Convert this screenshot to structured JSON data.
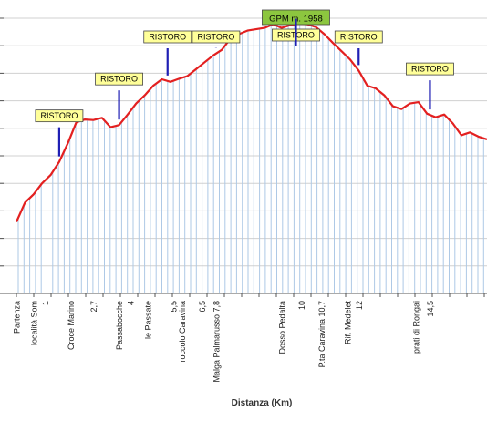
{
  "chart_data": {
    "type": "area",
    "title": "",
    "xlabel": "Distanza (Km)",
    "ylabel": "",
    "x": [
      0,
      0.3,
      0.6,
      0.9,
      1.2,
      1.5,
      1.8,
      2.1,
      2.4,
      2.7,
      3.0,
      3.3,
      3.6,
      3.9,
      4.2,
      4.5,
      4.8,
      5.1,
      5.4,
      5.7,
      6.0,
      6.3,
      6.6,
      6.9,
      7.2,
      7.5,
      7.8,
      8.1,
      8.4,
      8.7,
      9.0,
      9.3,
      9.6,
      9.9,
      10.2,
      10.5,
      10.8,
      11.1,
      11.4,
      11.7,
      12.0,
      12.3,
      12.6,
      12.9,
      13.2,
      13.5,
      13.8,
      14.1,
      14.4,
      14.7,
      15.0,
      15.3,
      15.6,
      15.9,
      16.2,
      16.5
    ],
    "y": [
      1260,
      1330,
      1360,
      1400,
      1430,
      1478,
      1545,
      1622,
      1632,
      1630,
      1638,
      1604,
      1612,
      1650,
      1690,
      1720,
      1755,
      1778,
      1769,
      1780,
      1790,
      1815,
      1840,
      1865,
      1885,
      1925,
      1942,
      1955,
      1960,
      1965,
      1978,
      1965,
      1975,
      1980,
      1978,
      1968,
      1942,
      1910,
      1880,
      1850,
      1810,
      1755,
      1745,
      1720,
      1680,
      1670,
      1690,
      1695,
      1653,
      1640,
      1650,
      1618,
      1575,
      1585,
      1570,
      1560
    ],
    "ylim": [
      1000,
      2000
    ],
    "xlim": [
      0,
      16.5
    ],
    "grid": true,
    "line_color": "#e32020",
    "fill_line_color": "#aec9e6",
    "tick_labels": [
      {
        "x": 0.0,
        "label": "Partenza"
      },
      {
        "x": 0.6,
        "label": "località Som"
      },
      {
        "x": 1.0,
        "label": "1"
      },
      {
        "x": 1.9,
        "label": "Croce Marino"
      },
      {
        "x": 2.7,
        "label": "2,7"
      },
      {
        "x": 3.6,
        "label": "Passabocche"
      },
      {
        "x": 4.0,
        "label": "4"
      },
      {
        "x": 4.6,
        "label": "le Passate"
      },
      {
        "x": 5.5,
        "label": "5,5"
      },
      {
        "x": 5.8,
        "label": "roccolo Caravina"
      },
      {
        "x": 6.5,
        "label": "6,5"
      },
      {
        "x": 7.0,
        "label": "Malga Palmarusso 7,8"
      },
      {
        "x": 9.3,
        "label": "Dosso Pedalta"
      },
      {
        "x": 10.0,
        "label": "10"
      },
      {
        "x": 10.7,
        "label": "P.ta Caravina 10,7"
      },
      {
        "x": 11.6,
        "label": "Rif. Medelet"
      },
      {
        "x": 12.0,
        "label": "12"
      },
      {
        "x": 14.0,
        "label": "prati di Rongai"
      },
      {
        "x": 14.5,
        "label": "14,5"
      }
    ],
    "annotations": [
      {
        "x": 1.5,
        "label": "RISTORO",
        "kind": "ristoro"
      },
      {
        "x": 3.6,
        "label": "RISTORO",
        "kind": "ristoro"
      },
      {
        "x": 5.3,
        "label": "RISTORO",
        "kind": "ristoro"
      },
      {
        "x": 7.0,
        "label": "RISTORO",
        "kind": "ristoro"
      },
      {
        "x": 9.8,
        "label": "GPM m. 1958",
        "kind": "gpm"
      },
      {
        "x": 9.8,
        "label": "RISTORO",
        "kind": "ristoro"
      },
      {
        "x": 12.0,
        "label": "RISTORO",
        "kind": "ristoro"
      },
      {
        "x": 14.5,
        "label": "RISTORO",
        "kind": "ristoro"
      }
    ]
  }
}
